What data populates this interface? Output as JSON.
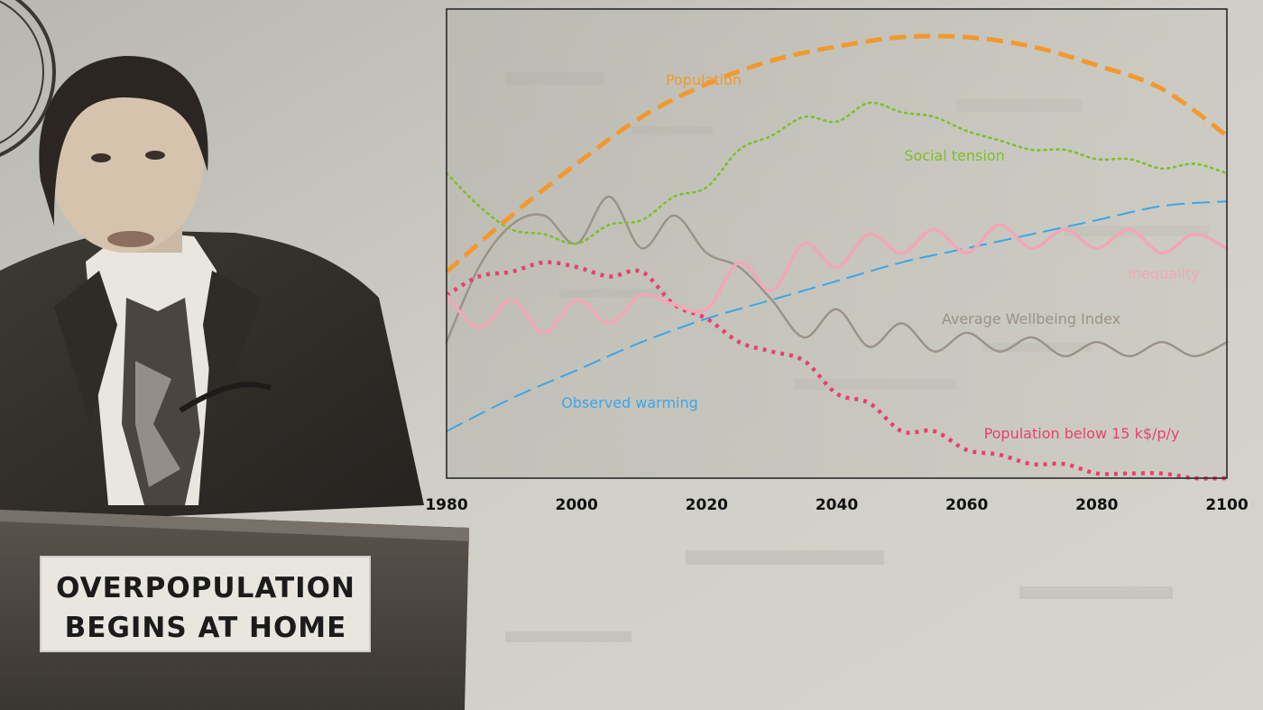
{
  "podium_sign": {
    "line1": "OVERPOPULATION",
    "line2": "BEGINS AT HOME"
  },
  "colors": {
    "population": "#f2992e",
    "social_tension": "#7fbf2a",
    "inequality": "#f4a6b7",
    "wellbeing": "#9a918a",
    "warming": "#3ba6e8",
    "poverty": "#e8416e"
  },
  "chart_data": {
    "type": "line",
    "title": "",
    "xlabel": "",
    "ylabel": "",
    "xlim": [
      1980,
      2100
    ],
    "ylim": [
      0,
      100
    ],
    "x_ticks": [
      "1980",
      "2000",
      "2020",
      "2040",
      "2060",
      "2080",
      "2100"
    ],
    "grid": false,
    "y_axis_numbered": false,
    "series": [
      {
        "name": "Population",
        "style": "dashed-thick",
        "x": [
          1980,
          1990,
          2000,
          2010,
          2020,
          2030,
          2040,
          2050,
          2060,
          2070,
          2080,
          2090,
          2100
        ],
        "y": [
          44,
          56,
          67,
          77,
          84,
          89,
          92,
          94,
          94,
          92,
          88,
          83,
          73
        ]
      },
      {
        "name": "Social tension",
        "style": "dotted",
        "x": [
          1980,
          1985,
          1990,
          1995,
          2000,
          2005,
          2010,
          2015,
          2020,
          2025,
          2030,
          2035,
          2040,
          2045,
          2050,
          2055,
          2060,
          2065,
          2070,
          2075,
          2080,
          2085,
          2090,
          2095,
          2100
        ],
        "y": [
          65,
          58,
          53,
          52,
          50,
          54,
          55,
          60,
          62,
          70,
          73,
          77,
          76,
          80,
          78,
          77,
          74,
          72,
          70,
          70,
          68,
          68,
          66,
          67,
          65
        ],
        "label_position": "right-middle"
      },
      {
        "name": "Inequality",
        "style": "solid-wavy",
        "x": [
          1980,
          1985,
          1990,
          1995,
          2000,
          2005,
          2010,
          2015,
          2020,
          2025,
          2030,
          2035,
          2040,
          2045,
          2050,
          2055,
          2060,
          2065,
          2070,
          2075,
          2080,
          2085,
          2090,
          2095,
          2100
        ],
        "y": [
          39,
          32,
          38,
          31,
          38,
          33,
          39,
          37,
          36,
          46,
          40,
          50,
          45,
          52,
          48,
          53,
          48,
          54,
          49,
          53,
          49,
          53,
          48,
          52,
          49
        ]
      },
      {
        "name": "Average Wellbeing Index",
        "style": "solid",
        "x": [
          1980,
          1985,
          1990,
          1995,
          2000,
          2005,
          2010,
          2015,
          2020,
          2025,
          2030,
          2035,
          2040,
          2045,
          2050,
          2055,
          2060,
          2065,
          2070,
          2075,
          2080,
          2085,
          2090,
          2095,
          2100
        ],
        "y": [
          29,
          45,
          54,
          56,
          50,
          60,
          49,
          56,
          48,
          45,
          38,
          30,
          36,
          28,
          33,
          27,
          31,
          27,
          30,
          26,
          29,
          26,
          29,
          26,
          29
        ]
      },
      {
        "name": "Observed warming",
        "style": "dashed-thin",
        "x": [
          1980,
          1990,
          2000,
          2010,
          2020,
          2030,
          2040,
          2050,
          2060,
          2070,
          2080,
          2090,
          2100
        ],
        "y": [
          10,
          17,
          23,
          29,
          34,
          38,
          42,
          46,
          49,
          52,
          55,
          58,
          59
        ]
      },
      {
        "name": "Population below 15 k$/p/y",
        "style": "dotted-thick",
        "x": [
          1980,
          1985,
          1990,
          1995,
          2000,
          2005,
          2010,
          2015,
          2020,
          2025,
          2030,
          2035,
          2040,
          2045,
          2050,
          2055,
          2060,
          2065,
          2070,
          2075,
          2080,
          2085,
          2090,
          2095,
          2100
        ],
        "y": [
          39,
          43,
          44,
          46,
          45,
          43,
          44,
          37,
          34,
          29,
          27,
          25,
          18,
          16,
          10,
          10,
          6,
          5,
          3,
          3,
          1,
          1,
          1,
          0,
          0
        ]
      }
    ]
  }
}
